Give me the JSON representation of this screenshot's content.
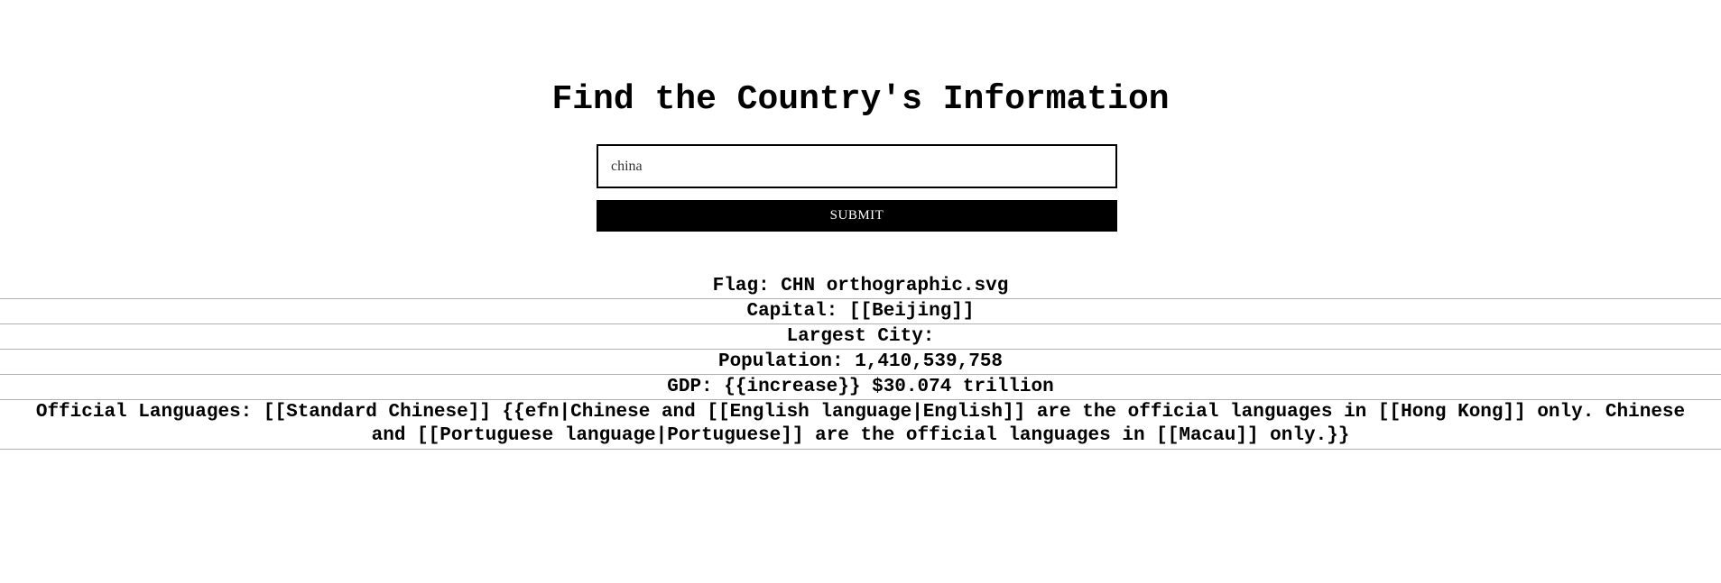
{
  "page": {
    "title": "Find the Country's Information"
  },
  "search": {
    "value": "china",
    "placeholder": "",
    "submit_label": "SUBMIT"
  },
  "results": {
    "flag": "Flag: CHN orthographic.svg",
    "capital": "Capital: [[Beijing]]",
    "largest_city": "Largest City:",
    "population": "Population: 1,410,539,758",
    "gdp": "GDP: {{increase}} $30.074 trillion",
    "official_languages": "Official Languages: [[Standard Chinese]] {{efn|Chinese and [[English language|English]] are the official languages in [[Hong Kong]] only. Chinese and [[Portuguese language|Portuguese]] are the official languages in [[Macau]] only.}}"
  }
}
